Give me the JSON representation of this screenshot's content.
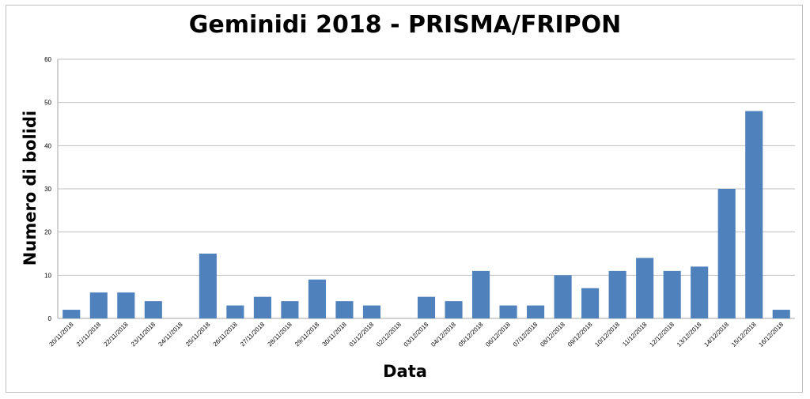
{
  "chart_data": {
    "type": "bar",
    "title": "Geminidi 2018 - PRISMA/FRIPON",
    "xlabel": "Data",
    "ylabel": "Numero di bolidi",
    "ylim": [
      0,
      60
    ],
    "yticks": [
      0,
      10,
      20,
      30,
      40,
      50,
      60
    ],
    "grid": true,
    "legend": "none",
    "bar_color": "#4f81bd",
    "categories": [
      "20/11/2018",
      "21/11/2018",
      "22/11/2018",
      "23/11/2018",
      "24/11/2018",
      "25/11/2018",
      "26/11/2018",
      "27/11/2018",
      "28/11/2018",
      "29/11/2018",
      "30/11/2018",
      "01/12/2018",
      "02/12/2018",
      "03/12/2018",
      "04/12/2018",
      "05/12/2018",
      "06/12/2018",
      "07/12/2018",
      "08/12/2018",
      "09/12/2018",
      "10/12/2018",
      "11/12/2018",
      "12/12/2018",
      "13/12/2018",
      "14/12/2018",
      "15/12/2018",
      "16/12/2018"
    ],
    "values": [
      2,
      6,
      6,
      4,
      0,
      15,
      3,
      5,
      4,
      9,
      4,
      3,
      0,
      5,
      4,
      11,
      3,
      3,
      10,
      7,
      11,
      14,
      11,
      12,
      30,
      48,
      2
    ]
  }
}
